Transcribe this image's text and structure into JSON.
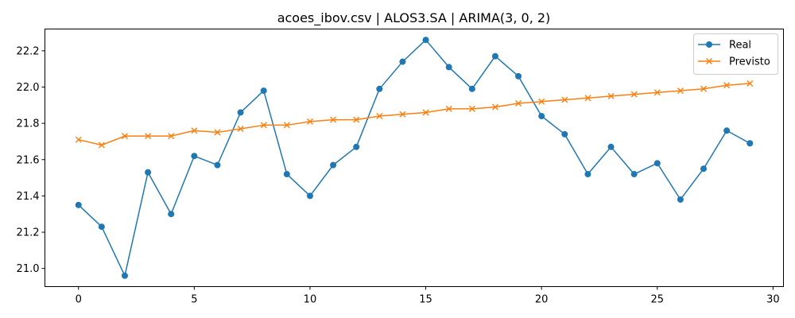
{
  "chart_data": {
    "type": "line",
    "title": "acoes_ibov.csv | ALOS3.SA | ARIMA(3, 0, 2)",
    "xlabel": "",
    "ylabel": "",
    "xlim": [
      -1.45,
      30.45
    ],
    "ylim": [
      20.9,
      22.32
    ],
    "x_ticks": [
      0,
      5,
      10,
      15,
      20,
      25,
      30
    ],
    "y_ticks": [
      21.0,
      21.2,
      21.4,
      21.6,
      21.8,
      22.0,
      22.2
    ],
    "grid": false,
    "legend_position": "top-right",
    "x": [
      0,
      1,
      2,
      3,
      4,
      5,
      6,
      7,
      8,
      9,
      10,
      11,
      12,
      13,
      14,
      15,
      16,
      17,
      18,
      19,
      20,
      21,
      22,
      23,
      24,
      25,
      26,
      27,
      28,
      29
    ],
    "series": [
      {
        "name": "Real",
        "color": "#1f77b4",
        "marker": "circle",
        "values": [
          21.35,
          21.23,
          20.96,
          21.53,
          21.3,
          21.62,
          21.57,
          21.86,
          21.98,
          21.52,
          21.4,
          21.57,
          21.67,
          21.99,
          22.14,
          22.26,
          22.11,
          21.99,
          22.17,
          22.06,
          21.84,
          21.74,
          21.52,
          21.67,
          21.52,
          21.58,
          21.38,
          21.55,
          21.76,
          21.69
        ]
      },
      {
        "name": "Previsto",
        "color": "#ff7f0e",
        "marker": "x",
        "values": [
          21.71,
          21.68,
          21.73,
          21.73,
          21.73,
          21.76,
          21.75,
          21.77,
          21.79,
          21.79,
          21.81,
          21.82,
          21.82,
          21.84,
          21.85,
          21.86,
          21.88,
          21.88,
          21.89,
          21.91,
          21.92,
          21.93,
          21.94,
          21.95,
          21.96,
          21.97,
          21.98,
          21.99,
          22.01,
          22.02
        ]
      }
    ]
  }
}
